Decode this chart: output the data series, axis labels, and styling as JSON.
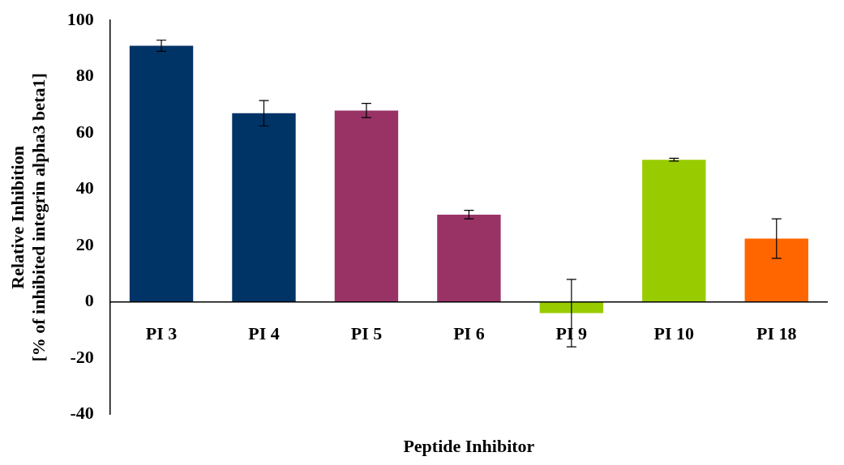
{
  "chart_data": {
    "type": "bar",
    "xlabel": "Peptide Inhibitor",
    "ylabel": "Relative Inhibition\n[% of inhibited integrin alpha3 beta1]",
    "categories": [
      "PI 3",
      "PI 4",
      "PI 5",
      "PI 6",
      "PI 9",
      "PI 10",
      "PI 18"
    ],
    "values": [
      91,
      67,
      68,
      31,
      -4,
      50.5,
      22.5
    ],
    "errors": [
      2,
      4.5,
      2.5,
      1.5,
      12,
      0.5,
      7
    ],
    "colors": [
      "#003366",
      "#003366",
      "#993366",
      "#993366",
      "#99cc00",
      "#99cc00",
      "#ff6600"
    ],
    "ylim": [
      -40,
      100
    ],
    "yticks": [
      -40,
      -20,
      0,
      20,
      40,
      60,
      80,
      100
    ],
    "grid": false,
    "legend": false
  }
}
